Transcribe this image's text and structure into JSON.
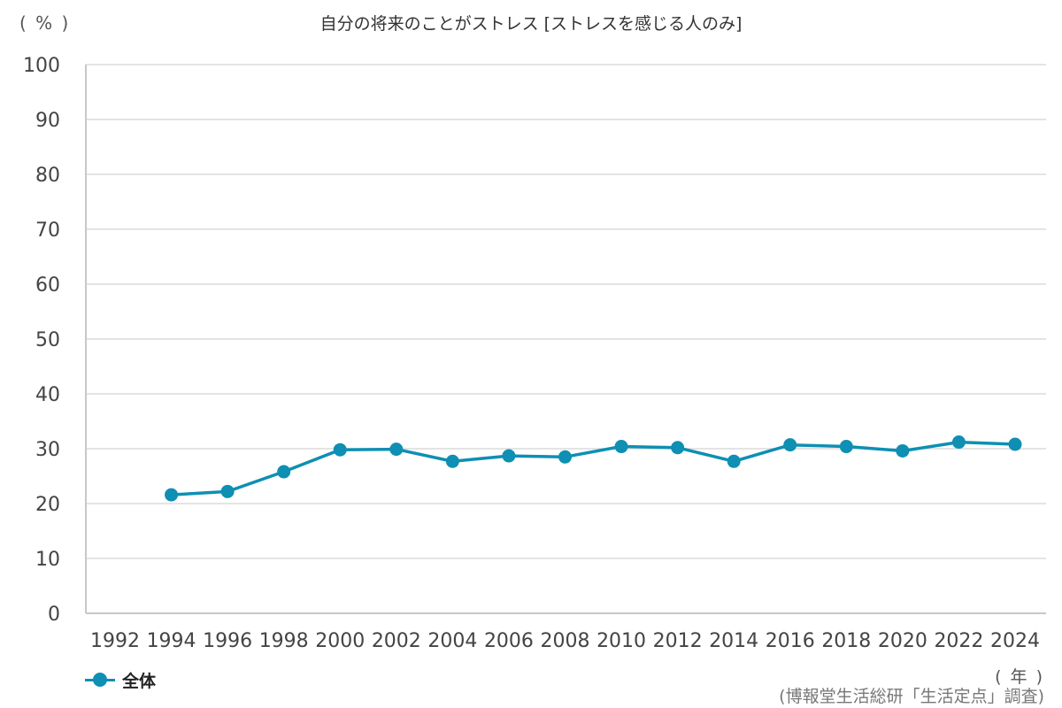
{
  "chart_data": {
    "type": "line",
    "title": "自分の将来のことがストレス [ストレスを感じる人のみ]",
    "ylabel": "( % )",
    "xlabel": "( 年 )",
    "ylim": [
      0,
      100
    ],
    "yticks": [
      "0",
      "10",
      "20",
      "30",
      "40",
      "50",
      "60",
      "70",
      "80",
      "90",
      "100"
    ],
    "categories": [
      "1992",
      "1994",
      "1996",
      "1998",
      "2000",
      "2002",
      "2004",
      "2006",
      "2008",
      "2010",
      "2012",
      "2014",
      "2016",
      "2018",
      "2020",
      "2022",
      "2024"
    ],
    "series": [
      {
        "name": "全体",
        "color": "#0e8fb3",
        "values": [
          null,
          21.6,
          22.2,
          25.8,
          29.8,
          29.9,
          27.7,
          28.7,
          28.5,
          30.4,
          30.2,
          27.7,
          30.7,
          30.4,
          29.6,
          31.2,
          30.8
        ]
      }
    ],
    "grid": true,
    "legend_position": "bottom-left",
    "source": "(博報堂生活総研「生活定点」調査)"
  }
}
